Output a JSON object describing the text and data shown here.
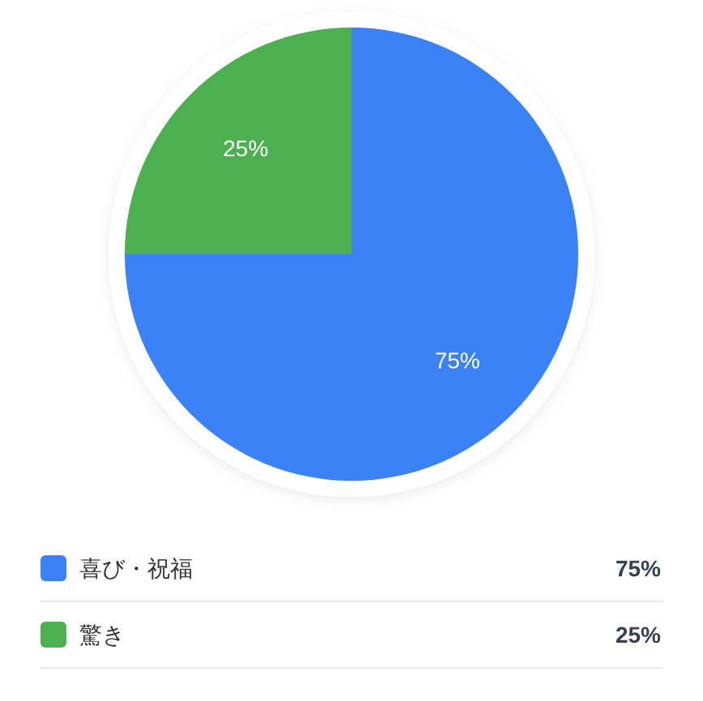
{
  "chart_data": {
    "type": "pie",
    "categories": [
      "喜び・祝福",
      "驚き"
    ],
    "values": [
      75,
      25
    ],
    "value_labels": [
      "75%",
      "25%"
    ],
    "colors": [
      "#3b82f6",
      "#4caf50"
    ],
    "legend": "bottom"
  }
}
